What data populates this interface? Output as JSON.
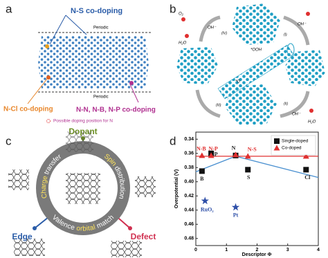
{
  "panel_a": {
    "label": "a",
    "ns_codoping": "N-S co-doping",
    "periodic_top": "Periodic",
    "periodic_bottom": "Periodic",
    "ncl_codoping": "N-Cl co-doping",
    "nn_codoping": "N-N, N-B, N-P co-doping",
    "legend": "Possible doping position for N"
  },
  "panel_b": {
    "label": "b",
    "o2": "O₂",
    "h2o_left": "H₂O",
    "oh_left": "OH⁻",
    "step4": "(IV)",
    "ooh": "*OOH",
    "oh_right": "OH⁻",
    "step1": "(I)",
    "step2": "(II)",
    "o_star": "*O",
    "step3": "(III)",
    "oh_bottom": "OH⁻",
    "h2o_bottom": "H₂O"
  },
  "panel_c": {
    "label": "c",
    "dopant": "Dopant",
    "charge": "Charge",
    "transfer": "transfer",
    "spin": "Spin",
    "distribution": "distribution",
    "valence": "Valence",
    "orbital": "orbital",
    "match": "match",
    "edge": "Edge",
    "defect": "Defect"
  },
  "chart_data": {
    "type": "scatter",
    "label": "d",
    "ylabel": "Overpotential (V)",
    "xlabel": "Descriptor Φ",
    "xlim": [
      0,
      4
    ],
    "xticks": [
      0,
      1,
      2,
      3,
      4
    ],
    "ylim": [
      0.33,
      0.49
    ],
    "y_inverted": true,
    "yticks": [
      0.34,
      0.36,
      0.38,
      {
        "value": 0.4,
        "label": "0.40"
      },
      0.42,
      0.44,
      0.46,
      0.48
    ],
    "legend": "upper right",
    "series": [
      {
        "name": "Single-doped",
        "color": "#111111",
        "marker": "square",
        "x": [
          0.2,
          0.5,
          1.3,
          1.7,
          3.6
        ],
        "values": [
          0.385,
          0.36,
          0.363,
          0.383,
          0.383
        ],
        "point_labels": [
          "B",
          "P",
          "N",
          "S",
          "Cl"
        ]
      },
      {
        "name": "Co-doped",
        "color": "#e03030",
        "marker": "triangle",
        "x": [
          0.2,
          0.5,
          1.3,
          1.7,
          3.6
        ],
        "values": [
          0.363,
          0.363,
          0.362,
          0.364,
          0.364
        ],
        "point_labels": [
          "N-B",
          "N-P",
          null,
          "N-S",
          "N-Cl"
        ]
      }
    ],
    "references": {
      "color": "#2e4fa8",
      "marker": "star",
      "x": [
        0.3,
        1.3
      ],
      "values": [
        0.427,
        0.436
      ],
      "point_labels": [
        "RuO₂",
        "Pt"
      ]
    },
    "lines": [
      {
        "color": "#e03030",
        "x": [
          0,
          4
        ],
        "values": [
          0.364,
          0.364
        ]
      },
      {
        "color": "#4a90d0",
        "x": [
          0,
          1.3,
          4
        ],
        "values": [
          0.386,
          0.364,
          0.394
        ]
      }
    ]
  }
}
